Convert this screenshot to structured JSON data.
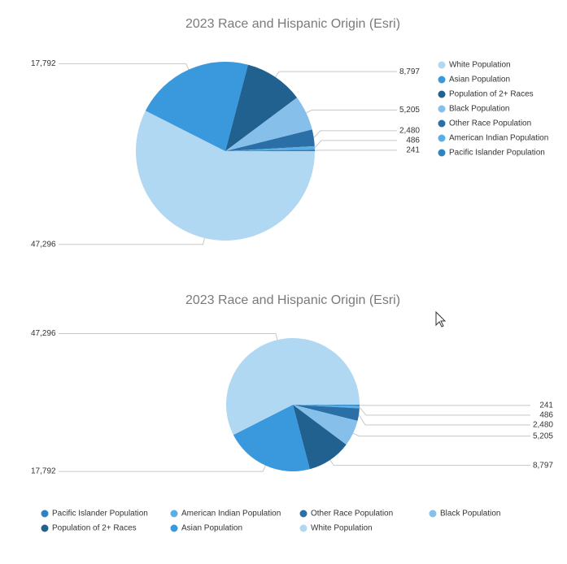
{
  "chart_data": [
    {
      "type": "pie",
      "title": "2023 Race and Hispanic Origin (Esri)",
      "legend": "right",
      "categories": [
        "White Population",
        "Asian Population",
        "Population of 2+ Races",
        "Black Population",
        "Other Race Population",
        "American Indian Population",
        "Pacific Islander Population"
      ],
      "values": [
        47296,
        17792,
        8797,
        5205,
        2480,
        486,
        241
      ],
      "value_labels": [
        "47,296",
        "17,792",
        "8,797",
        "5,205",
        "2,480",
        "486",
        "241"
      ],
      "colors": [
        "#b1d8f2",
        "#3a98dc",
        "#21618f",
        "#86c0ea",
        "#2a6fa6",
        "#5aaee6",
        "#2f82c0"
      ]
    },
    {
      "type": "pie",
      "title": "2023 Race and Hispanic Origin (Esri)",
      "legend": "bottom",
      "categories": [
        "Pacific Islander Population",
        "American Indian Population",
        "Other Race Population",
        "Black Population",
        "Population of 2+ Races",
        "Asian Population",
        "White Population"
      ],
      "values": [
        241,
        486,
        2480,
        5205,
        8797,
        17792,
        47296
      ],
      "value_labels": [
        "241",
        "486",
        "2,480",
        "5,205",
        "8,797",
        "17,792",
        "47,296"
      ],
      "colors": [
        "#2f82c0",
        "#5aaee6",
        "#2a6fa6",
        "#86c0ea",
        "#21618f",
        "#3a98dc",
        "#b1d8f2"
      ]
    }
  ]
}
